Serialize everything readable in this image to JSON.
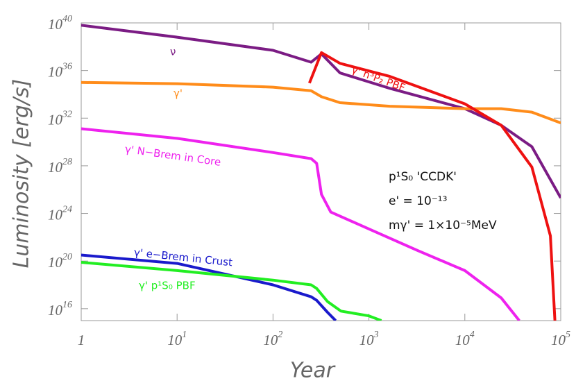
{
  "chart_data": {
    "type": "line",
    "xlabel": "Year",
    "ylabel": "Luminosity [erg/s]",
    "xlog": true,
    "ylog": true,
    "xlim": [
      1,
      100000
    ],
    "ylim": [
      1000000000000000.0,
      1e+40
    ],
    "xticks": [
      1,
      {
        "value": 10,
        "label": "10",
        "sup": "1"
      },
      {
        "value": 100,
        "label": "10",
        "sup": "2"
      },
      {
        "value": 1000,
        "label": "10",
        "sup": "3"
      },
      {
        "value": 10000,
        "label": "10",
        "sup": "4"
      },
      {
        "value": 100000,
        "label": "10",
        "sup": "5"
      }
    ],
    "yticks": [
      {
        "value": 1e+16,
        "label": "10",
        "sup": "16"
      },
      {
        "value": 1e+20,
        "label": "10",
        "sup": "20"
      },
      {
        "value": 1e+24,
        "label": "10",
        "sup": "24"
      },
      {
        "value": 1e+28,
        "label": "10",
        "sup": "28"
      },
      {
        "value": 1e+32,
        "label": "10",
        "sup": "32"
      },
      {
        "value": 1e+36,
        "label": "10",
        "sup": "36"
      },
      {
        "value": 1e+40,
        "label": "10",
        "sup": "40"
      }
    ],
    "series": [
      {
        "name": "ν",
        "color": "#7b1c84",
        "x": [
          1,
          10,
          100,
          250,
          320,
          500,
          1650,
          10000,
          24000,
          50000,
          100000
        ],
        "values": [
          6.3e+39,
          6.3e+38,
          5e+37,
          5e+36,
          2.5e+37,
          6.3e+35,
          3.2e+34,
          6.3e+32,
          2.5e+31,
          4e+29,
          2e+25
        ]
      },
      {
        "name": "γ'",
        "color": "#ff8c1a",
        "x": [
          1,
          10,
          100,
          250,
          320,
          500,
          1650,
          10000,
          24000,
          50000,
          100000
        ],
        "values": [
          1e+35,
          7.9e+34,
          4e+34,
          2e+34,
          6.3e+33,
          2e+33,
          1e+33,
          6.3e+32,
          6.3e+32,
          3.2e+32,
          4e+31
        ]
      },
      {
        "name": "γ' n³P₂ PBF",
        "color": "#ee1111",
        "x": [
          240,
          320,
          500,
          1650,
          10000,
          24000,
          50000,
          78000,
          87000
        ],
        "values": [
          8.9e+34,
          3.2e+37,
          4e+36,
          3.2e+35,
          1.6e+33,
          2.5e+31,
          7.9e+27,
          1.3e+22,
          1000000000000000.0
        ]
      },
      {
        "name": "γ' N−Brem in Core",
        "color": "#ee22ee",
        "x": [
          1,
          10,
          100,
          250,
          285,
          320,
          400,
          1000,
          3200,
          10000,
          24000,
          37000
        ],
        "values": [
          1.3e+31,
          2e+30,
          1.3e+29,
          4e+28,
          1.6e+28,
          4e+25,
          1.3e+24,
          5e+22,
          7.9e+20,
          1.6e+19,
          7.9e+16,
          1000000000000000.0
        ]
      },
      {
        "name": "γ' e−Brem in Crust",
        "color": "#1a1acc",
        "x": [
          1,
          10,
          100,
          250,
          285,
          370,
          450
        ],
        "values": [
          3.2e+20,
          6.3e+19,
          1e+18,
          1e+17,
          5e+16,
          5000000000000000.0,
          1000000000000000.0
        ]
      },
      {
        "name": "γ' p¹S₀ PBF",
        "color": "#22ee22",
        "x": [
          1,
          10,
          100,
          250,
          285,
          370,
          510,
          1000,
          1350
        ],
        "values": [
          7.9e+19,
          1.6e+19,
          2.5e+18,
          1e+18,
          5e+17,
          4e+16,
          6300000000000000.0,
          2500000000000000.0,
          1000000000000000.0
        ]
      }
    ],
    "annotations": [
      "p¹S₀ 'CCDK'",
      "e' = 10⁻¹³",
      "mγ' = 1×10⁻⁵MeV"
    ]
  }
}
